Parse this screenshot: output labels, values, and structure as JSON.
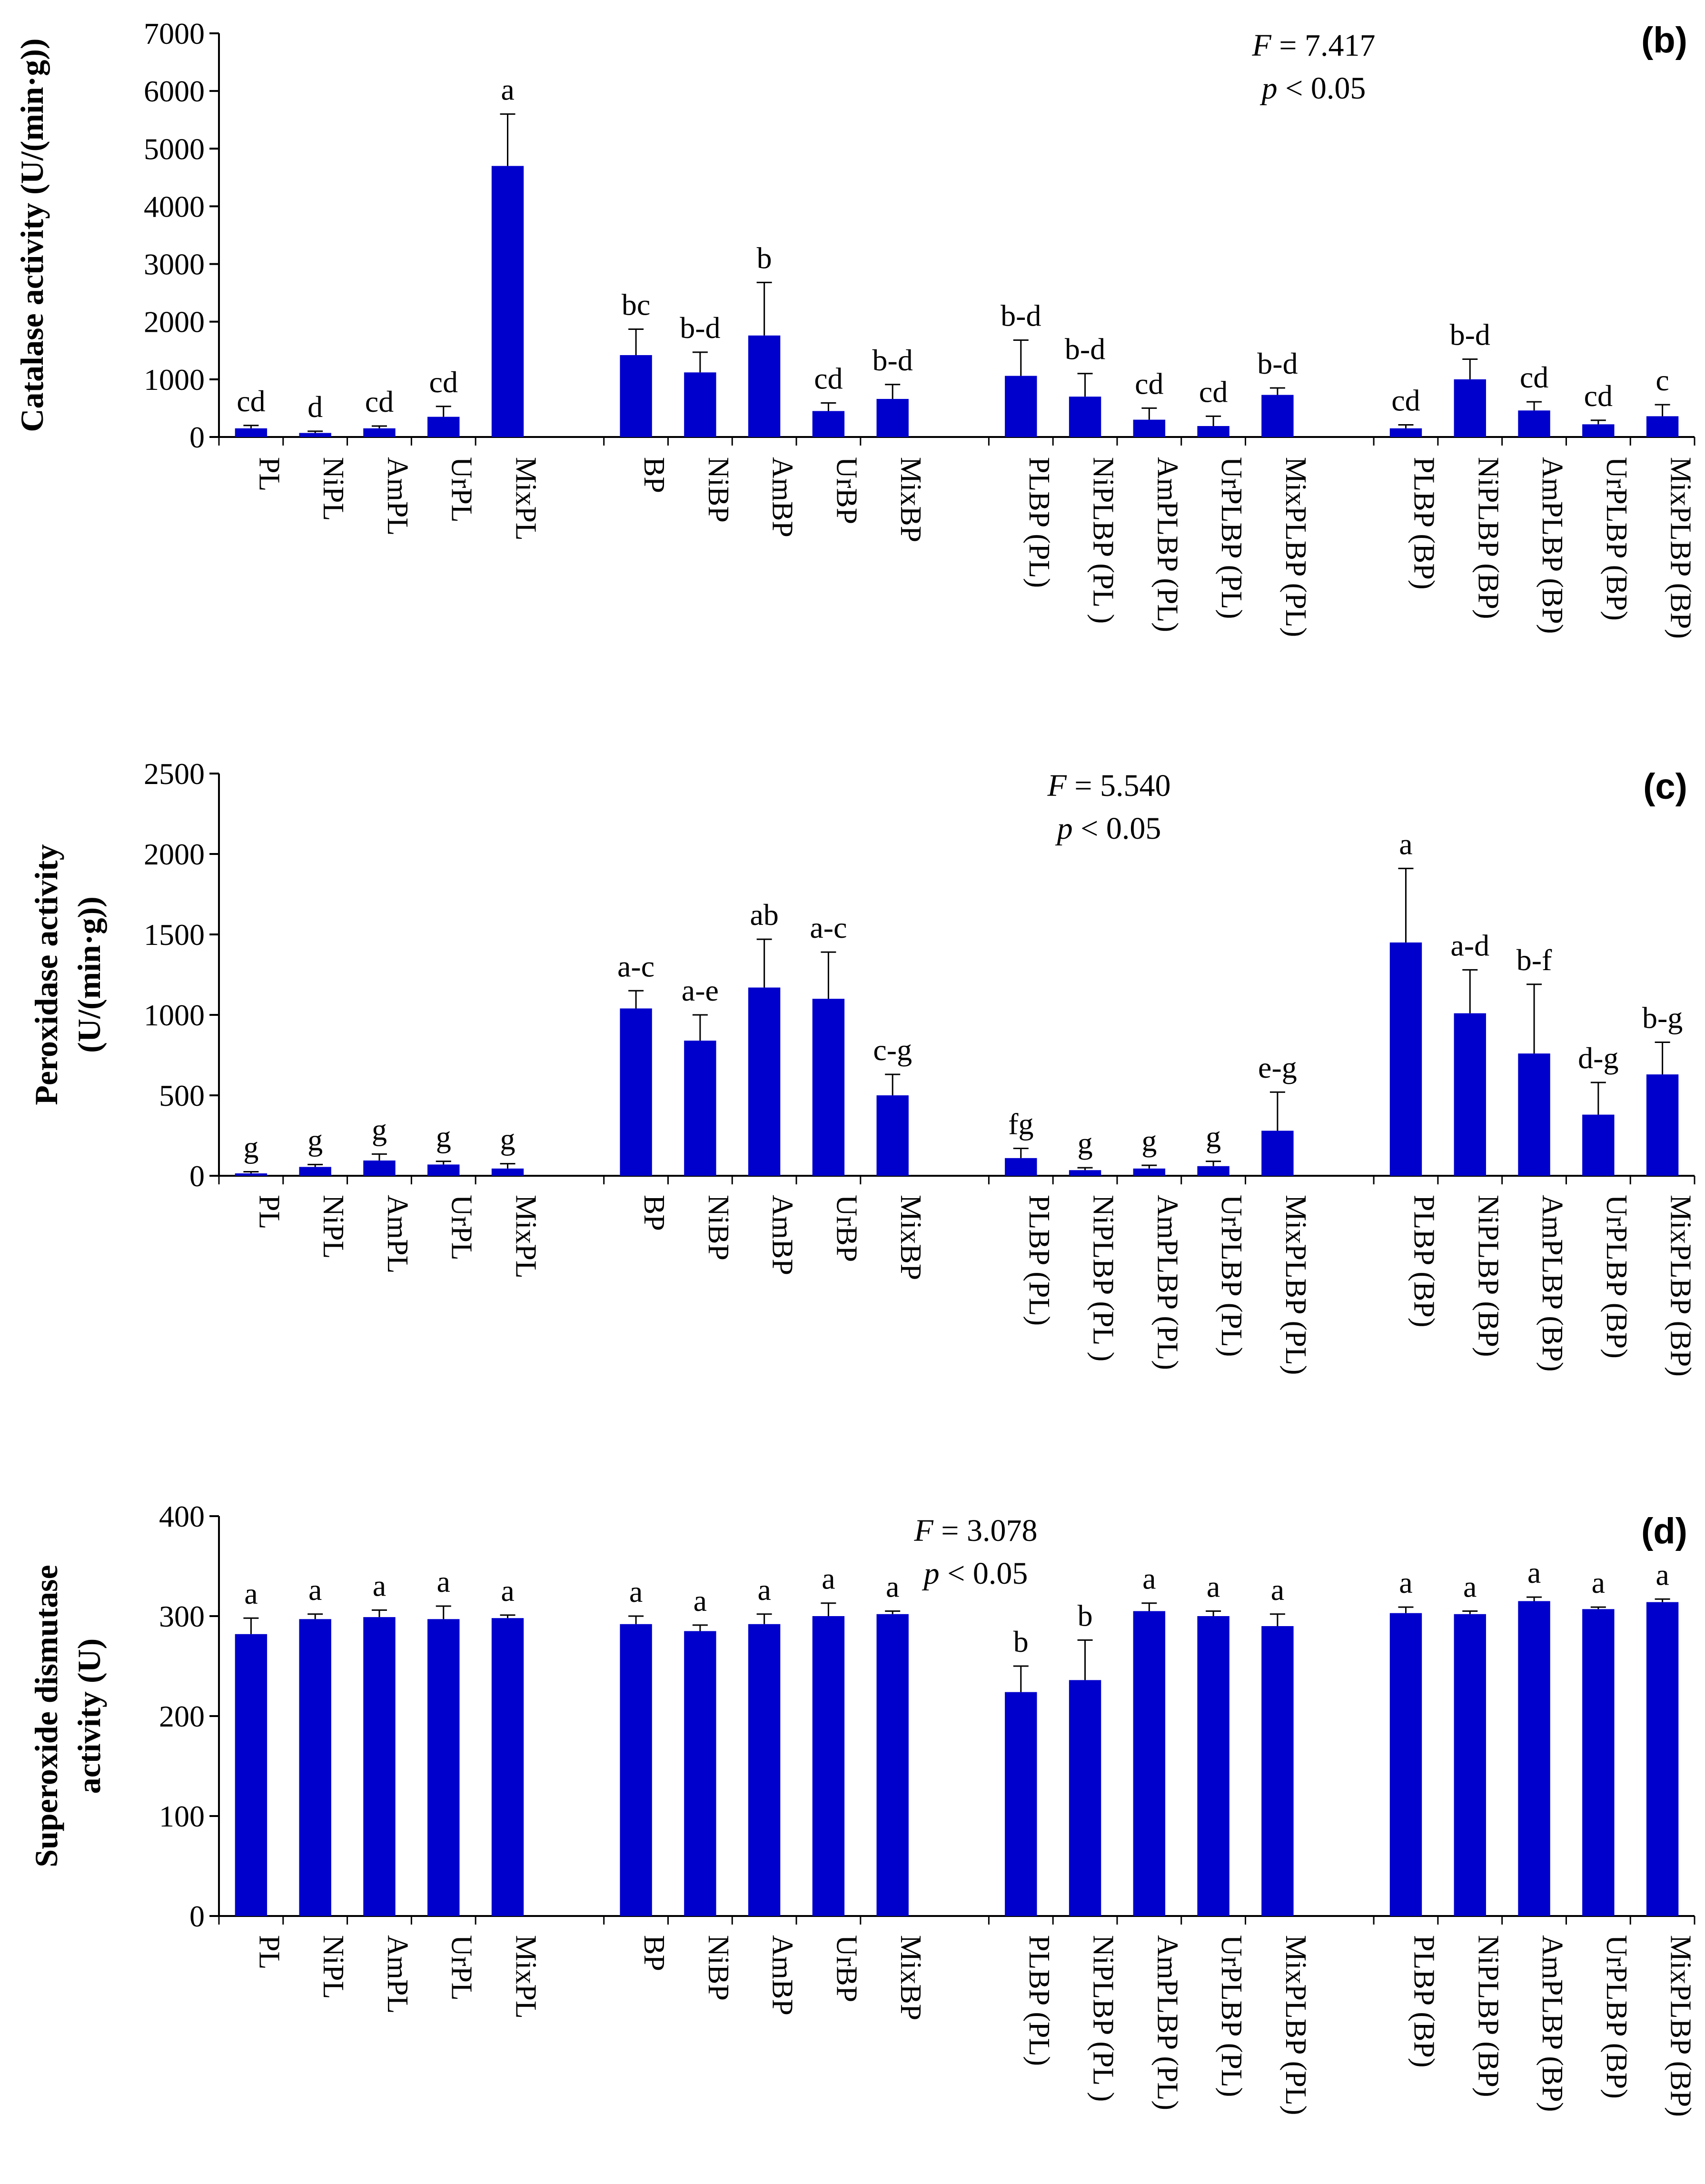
{
  "figure": {
    "bar_color": "#0000CC",
    "text_color": "#000000"
  },
  "chart_data": [
    {
      "type": "bar",
      "panel_label": "(b)",
      "ylabel_lines": [
        "Catalase activity (U/(min·g))"
      ],
      "ylim": [
        0,
        7000
      ],
      "yticks": [
        0,
        1000,
        2000,
        3000,
        4000,
        5000,
        6000,
        7000
      ],
      "stats_lines": [
        {
          "italic": "F",
          "rest": " = 7.417"
        },
        {
          "italic": "p",
          "rest": " < 0.05"
        }
      ],
      "categories": [
        "PL",
        "NiPL",
        "AmPL",
        "UrPL",
        "MixPL",
        "BP",
        "NiBP",
        "AmBP",
        "UrBP",
        "MixBP",
        "PLBP (PL)",
        "NiPLBP (PL )",
        "AmPLBP (PL)",
        "UrPLBP (PL)",
        "MixPLBP (PL)",
        "PLBP (BP)",
        "NiPLBP (BP)",
        "AmPLBP (BP)",
        "UrPLBP (BP)",
        "MixPLBP (BP)"
      ],
      "values": [
        150,
        70,
        150,
        350,
        4700,
        1420,
        1120,
        1760,
        450,
        660,
        1060,
        700,
        300,
        190,
        730,
        150,
        1000,
        460,
        220,
        360
      ],
      "errors": [
        50,
        30,
        40,
        180,
        900,
        450,
        350,
        920,
        140,
        250,
        620,
        400,
        200,
        170,
        120,
        60,
        350,
        150,
        70,
        200
      ],
      "letters": [
        "cd",
        "d",
        "cd",
        "cd",
        "a",
        "bc",
        "b-d",
        "b",
        "cd",
        "b-d",
        "b-d",
        "b-d",
        "cd",
        "cd",
        "b-d",
        "cd",
        "b-d",
        "cd",
        "cd",
        "c"
      ]
    },
    {
      "type": "bar",
      "panel_label": "(c)",
      "ylabel_lines": [
        "Peroxidase activity",
        "(U/(min·g))"
      ],
      "ylim": [
        0,
        2500
      ],
      "yticks": [
        0,
        500,
        1000,
        1500,
        2000,
        2500
      ],
      "stats_lines": [
        {
          "italic": "F",
          "rest": " = 5.540"
        },
        {
          "italic": "p",
          "rest": " < 0.05"
        }
      ],
      "categories": [
        "PL",
        "NiPL",
        "AmPL",
        "UrPL",
        "MixPL",
        "BP",
        "NiBP",
        "AmBP",
        "UrBP",
        "MixBP",
        "PLBP (PL)",
        "NiPLBP (PL )",
        "AmPLBP (PL)",
        "UrPLBP (PL)",
        "MixPLBP (PL)",
        "PLBP (BP)",
        "NiPLBP (BP)",
        "AmPLBP (BP)",
        "UrPLBP (BP)",
        "MixPLBP (BP)"
      ],
      "values": [
        15,
        55,
        95,
        70,
        45,
        1040,
        840,
        1170,
        1100,
        500,
        110,
        35,
        45,
        60,
        280,
        1450,
        1010,
        760,
        380,
        630
      ],
      "errors": [
        10,
        15,
        40,
        20,
        30,
        110,
        160,
        300,
        290,
        130,
        60,
        15,
        20,
        30,
        240,
        460,
        270,
        430,
        200,
        200
      ],
      "letters": [
        "g",
        "g",
        "g",
        "g",
        "g",
        "a-c",
        "a-e",
        "ab",
        "a-c",
        "c-g",
        "fg",
        "g",
        "g",
        "g",
        "e-g",
        "a",
        "a-d",
        "b-f",
        "d-g",
        "b-g"
      ]
    },
    {
      "type": "bar",
      "panel_label": "(d)",
      "ylabel_lines": [
        "Superoxide dismutase",
        "activity (U)"
      ],
      "ylim": [
        0,
        400
      ],
      "yticks": [
        0,
        100,
        200,
        300,
        400
      ],
      "stats_lines": [
        {
          "italic": "F",
          "rest": " = 3.078"
        },
        {
          "italic": "p",
          "rest": " < 0.05"
        }
      ],
      "categories": [
        "PL",
        "NiPL",
        "AmPL",
        "UrPL",
        "MixPL",
        "BP",
        "NiBP",
        "AmBP",
        "UrBP",
        "MixBP",
        "PLBP (PL)",
        "NiPLBP (PL )",
        "AmPLBP (PL)",
        "UrPLBP (PL)",
        "MixPLBP (PL)",
        "PLBP (BP)",
        "NiPLBP (BP)",
        "AmPLBP (BP)",
        "UrPLBP (BP)",
        "MixPLBP (BP)"
      ],
      "values": [
        282,
        297,
        299,
        297,
        298,
        292,
        285,
        292,
        300,
        302,
        224,
        236,
        305,
        300,
        290,
        303,
        302,
        315,
        307,
        314
      ],
      "errors": [
        16,
        5,
        7,
        13,
        3,
        8,
        6,
        10,
        13,
        3,
        26,
        40,
        8,
        5,
        12,
        6,
        3,
        4,
        2,
        3
      ],
      "letters": [
        "a",
        "a",
        "a",
        "a",
        "a",
        "a",
        "a",
        "a",
        "a",
        "a",
        "b",
        "b",
        "a",
        "a",
        "a",
        "a",
        "a",
        "a",
        "a",
        "a"
      ]
    }
  ]
}
